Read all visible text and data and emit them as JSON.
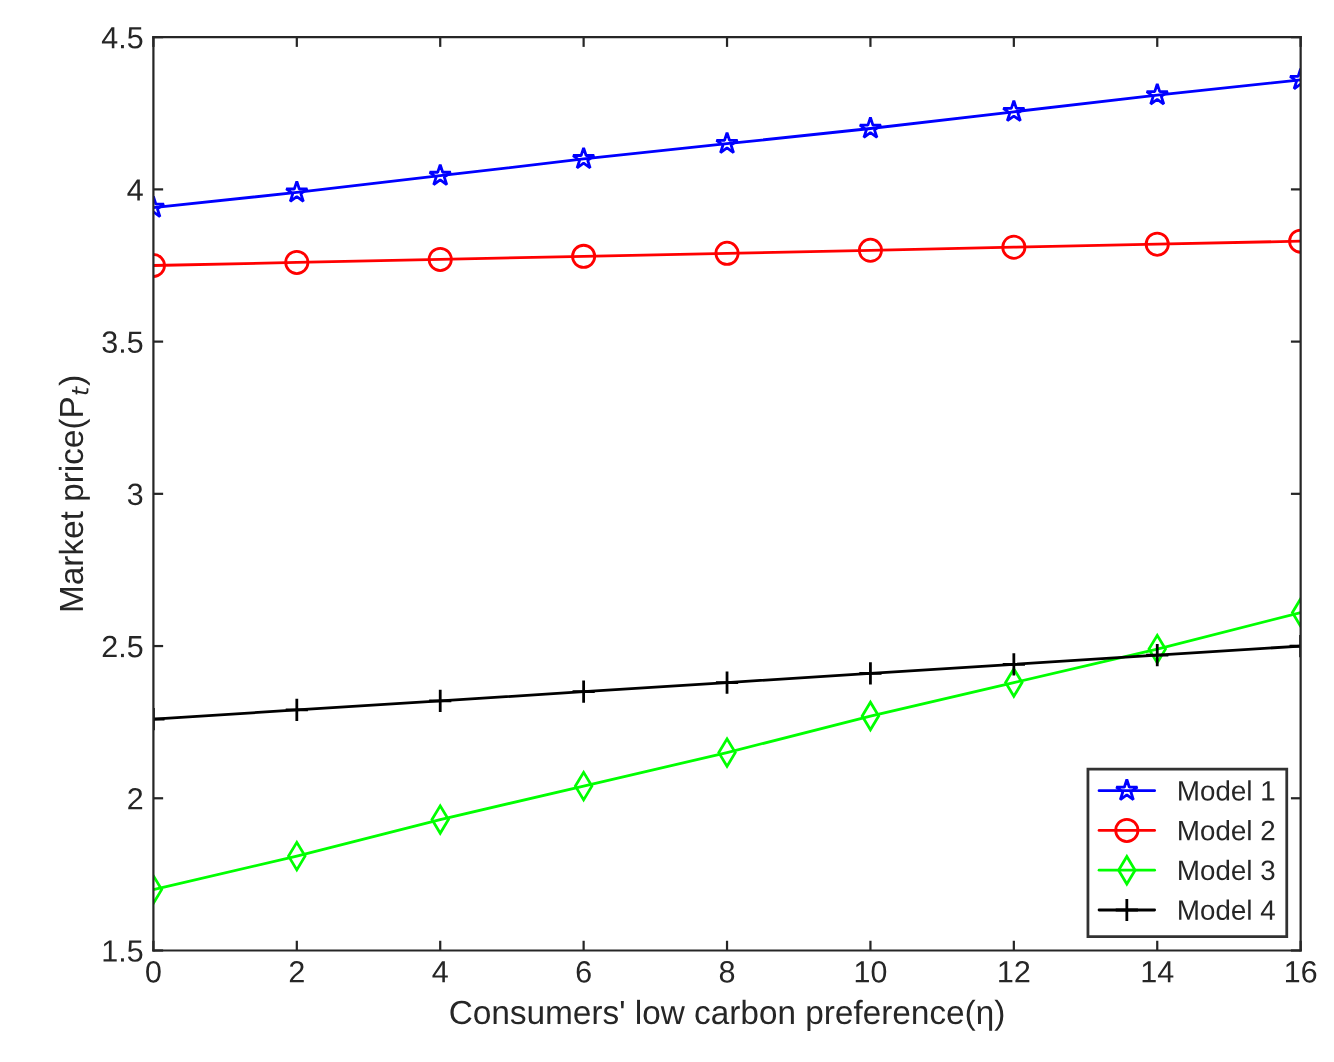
{
  "chart_data": {
    "type": "line",
    "xlabel": "Consumers' low carbon preference(η)",
    "ylabel": "Market price(P$_{t}$)",
    "x": [
      0,
      2,
      4,
      6,
      8,
      10,
      12,
      14,
      16
    ],
    "series": [
      {
        "name": "Model 1",
        "color": "#0000ff",
        "marker": "star",
        "values": [
          3.94,
          3.99,
          4.045,
          4.1,
          4.15,
          4.2,
          4.255,
          4.31,
          4.36
        ]
      },
      {
        "name": "Model 2",
        "color": "#ff0000",
        "marker": "circle",
        "values": [
          3.75,
          3.76,
          3.77,
          3.78,
          3.79,
          3.8,
          3.81,
          3.82,
          3.83
        ]
      },
      {
        "name": "Model 3",
        "color": "#00ff00",
        "marker": "diamond",
        "values": [
          1.7,
          1.81,
          1.93,
          2.04,
          2.15,
          2.27,
          2.38,
          2.49,
          2.61
        ]
      },
      {
        "name": "Model 4",
        "color": "#000000",
        "marker": "cross",
        "values": [
          2.26,
          2.29,
          2.32,
          2.35,
          2.38,
          2.41,
          2.44,
          2.47,
          2.5
        ]
      }
    ],
    "xlim": [
      0,
      16
    ],
    "xticks": [
      0,
      2,
      4,
      6,
      8,
      10,
      12,
      14,
      16
    ],
    "ylim": [
      1.5,
      4.5
    ],
    "yticks": [
      1.5,
      2,
      2.5,
      3,
      3.5,
      4,
      4.5
    ],
    "grid": false,
    "legend": "bottom right",
    "line_style": "solid"
  }
}
